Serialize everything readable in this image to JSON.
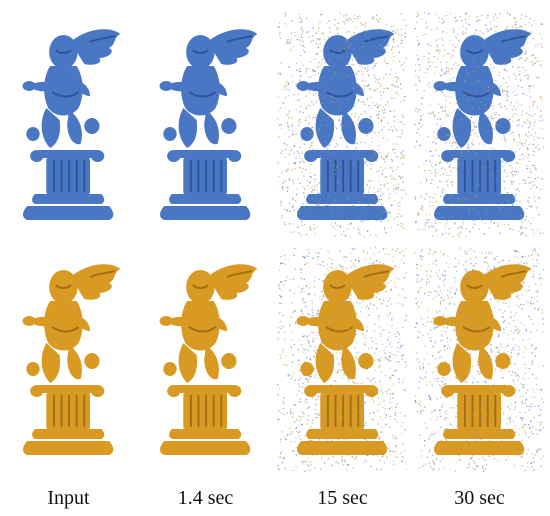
{
  "colors": {
    "background": "#ffffff",
    "surface_blue": "#4a77c4",
    "surface_blue_dark": "#2f5497",
    "surface_gold": "#d89a22",
    "surface_gold_dark": "#a06f12",
    "noise_blue": "#6f8fc8",
    "noise_gold": "#c9a35a"
  },
  "figure": {
    "captions": [
      "Input",
      "1.4 sec",
      "15 sec",
      "30 sec"
    ],
    "rows": [
      {
        "name": "row-top",
        "panels": [
          {
            "stage": "input",
            "primary": "blue",
            "secondary": "none",
            "mix": 0.0,
            "noise": 0.0
          },
          {
            "stage": "1.4 sec",
            "primary": "blue",
            "secondary": "gold",
            "mix": 0.45,
            "noise": 0.0
          },
          {
            "stage": "15 sec",
            "primary": "blue",
            "secondary": "gold",
            "mix": 0.5,
            "noise": 1.0
          },
          {
            "stage": "30 sec",
            "primary": "blue",
            "secondary": "gold",
            "mix": 0.5,
            "noise": 1.0
          }
        ]
      },
      {
        "name": "row-bottom",
        "panels": [
          {
            "stage": "input",
            "primary": "gold",
            "secondary": "none",
            "mix": 0.0,
            "noise": 0.0
          },
          {
            "stage": "1.4 sec",
            "primary": "gold",
            "secondary": "blue",
            "mix": 0.5,
            "noise": 0.0
          },
          {
            "stage": "15 sec",
            "primary": "gold",
            "secondary": "blue",
            "mix": 0.5,
            "noise": 1.0
          },
          {
            "stage": "30 sec",
            "primary": "gold",
            "secondary": "blue",
            "mix": 0.5,
            "noise": 1.0
          }
        ]
      }
    ]
  }
}
